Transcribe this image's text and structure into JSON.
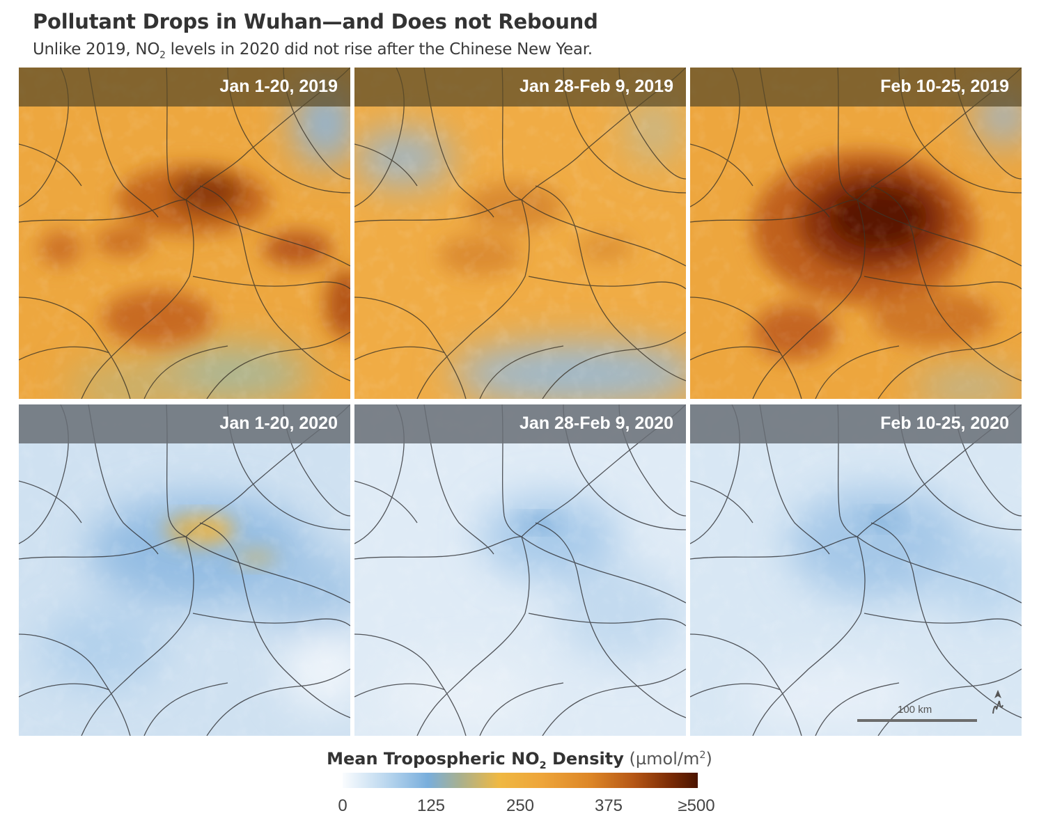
{
  "title": "Pollutant Drops in Wuhan—and Does not Rebound",
  "subtitle": {
    "before": "Unlike 2019, NO",
    "sub": "2",
    "after": " levels in 2020 did not rise after the Chinese New Year."
  },
  "panels": [
    {
      "label": "Jan 1-20, 2019",
      "year": 2019,
      "level": "high"
    },
    {
      "label": "Jan 28-Feb 9, 2019",
      "year": 2019,
      "level": "medium"
    },
    {
      "label": "Feb 10-25, 2019",
      "year": 2019,
      "level": "very-high"
    },
    {
      "label": "Jan 1-20, 2020",
      "year": 2020,
      "level": "medium"
    },
    {
      "label": "Jan 28-Feb 9, 2020",
      "year": 2020,
      "level": "low"
    },
    {
      "label": "Feb 10-25, 2020",
      "year": 2020,
      "level": "low"
    }
  ],
  "scale_bar": {
    "label": "100 km"
  },
  "north_arrow_icon": "north-arrow-icon",
  "legend": {
    "title_main": "Mean Tropospheric NO",
    "title_sub": "2",
    "title_rest": " Density",
    "unit_main": "(µmol/m",
    "unit_sup": "2",
    "unit_end": ")",
    "ticks": [
      "0",
      "125",
      "250",
      "375",
      "≥500"
    ],
    "colors": [
      "#fafcfe",
      "#79aedc",
      "#efb842",
      "#dc8526",
      "#4a1300"
    ]
  }
}
